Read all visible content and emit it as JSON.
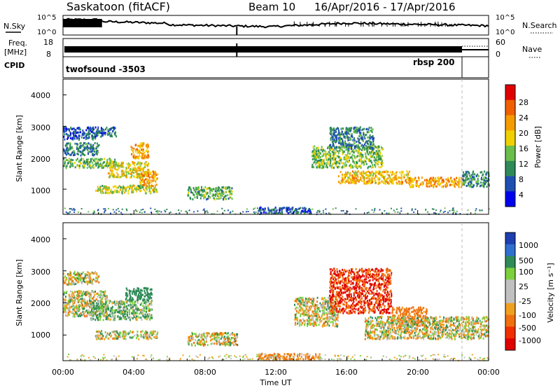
{
  "header": {
    "station": "Saskatoon (fitACF)",
    "beam": "Beam 10",
    "dates": "16/Apr/2016 - 17/Apr/2016"
  },
  "noise_panel": {
    "left_label": "N.Sky",
    "right_label": "N.Search",
    "left_ticks": [
      "10^5",
      "10^0"
    ],
    "right_ticks": [
      "10^5",
      "10^0"
    ]
  },
  "freq_panel": {
    "left_label_1": "Freq.",
    "left_label_2": "[MHz]",
    "right_label": "Nave",
    "left_ticks": [
      "18",
      "8"
    ],
    "right_ticks": [
      "60",
      "0"
    ]
  },
  "cpid_panel": {
    "label": "CPID",
    "program_1": "twofsound -3503",
    "program_2": "rbsp 200"
  },
  "power_panel": {
    "ylabel": "Slant Range [km]",
    "yticks": [
      "4000",
      "3000",
      "2000",
      "1000"
    ],
    "colorbar_label": "Power [dB]",
    "colorbar_ticks": [
      "28",
      "24",
      "20",
      "16",
      "12",
      "8",
      "4"
    ],
    "colors": [
      "#0000ee",
      "#1f4fb3",
      "#2e8b57",
      "#6abf4b",
      "#f0d000",
      "#f59b00",
      "#f06000",
      "#e00000"
    ]
  },
  "velocity_panel": {
    "ylabel": "Slant Range [km]",
    "yticks": [
      "4000",
      "3000",
      "2000",
      "1000"
    ],
    "colorbar_label": "Velocity [m s⁻¹]",
    "colorbar_ticks": [
      "1000",
      "500",
      "100",
      "25",
      "-25",
      "-100",
      "-500",
      "-1000"
    ],
    "colors": [
      "#1d3fb0",
      "#2f6fd0",
      "#2e8b57",
      "#7cd03c",
      "#c0c0c0",
      "#c0c0c0",
      "#f0a020",
      "#f07010",
      "#f03000",
      "#e00000"
    ]
  },
  "x_axis": {
    "ticks": [
      "00:00",
      "04:00",
      "08:00",
      "12:00",
      "16:00",
      "20:00",
      "00:00"
    ],
    "label": "Time UT"
  },
  "chart_data": {
    "type": "heatmap",
    "title": "Saskatoon (fitACF) Beam 10 16/Apr/2016 - 17/Apr/2016",
    "xlabel": "Time UT",
    "ylabel": "Slant Range [km]",
    "xlim": [
      0,
      24
    ],
    "ylim": [
      200,
      4500
    ],
    "power_scale_db": [
      0,
      32
    ],
    "velocity_scale_ms": [
      -1000,
      1000
    ],
    "cpid_change_hour": 22.5,
    "power_regions": [
      {
        "t0": 0.0,
        "t1": 1.8,
        "r0": 2600,
        "r1": 3000,
        "db": 6
      },
      {
        "t0": 1.8,
        "t1": 3.0,
        "r0": 2700,
        "r1": 3000,
        "db": 8
      },
      {
        "t0": 0.0,
        "t1": 2.0,
        "r0": 2100,
        "r1": 2500,
        "db": 9
      },
      {
        "t0": 0.0,
        "t1": 3.0,
        "r0": 1700,
        "r1": 2000,
        "db": 13
      },
      {
        "t0": 2.5,
        "t1": 4.8,
        "r0": 1400,
        "r1": 1900,
        "db": 18
      },
      {
        "t0": 3.8,
        "t1": 4.8,
        "r0": 2000,
        "r1": 2500,
        "db": 22
      },
      {
        "t0": 4.3,
        "t1": 5.3,
        "r0": 1100,
        "r1": 1600,
        "db": 22
      },
      {
        "t0": 1.8,
        "t1": 5.3,
        "r0": 900,
        "r1": 1150,
        "db": 16
      },
      {
        "t0": 7.0,
        "t1": 9.5,
        "r0": 700,
        "r1": 1100,
        "db": 12
      },
      {
        "t0": 11.0,
        "t1": 14.0,
        "r0": 250,
        "r1": 450,
        "db": 6
      },
      {
        "t0": 14.0,
        "t1": 18.0,
        "r0": 1700,
        "r1": 2400,
        "db": 14
      },
      {
        "t0": 15.0,
        "t1": 17.5,
        "r0": 2300,
        "r1": 3000,
        "db": 9
      },
      {
        "t0": 15.5,
        "t1": 19.5,
        "r0": 1200,
        "r1": 1600,
        "db": 20
      },
      {
        "t0": 19.5,
        "t1": 22.5,
        "r0": 1100,
        "r1": 1400,
        "db": 22
      },
      {
        "t0": 22.5,
        "t1": 24.0,
        "r0": 1100,
        "r1": 1600,
        "db": 10
      }
    ],
    "velocity_regions": [
      {
        "t0": 0.0,
        "t1": 2.0,
        "r0": 2600,
        "r1": 3000,
        "v": 0
      },
      {
        "t0": 0.0,
        "t1": 2.5,
        "r0": 1600,
        "r1": 2400,
        "v": 0
      },
      {
        "t0": 1.5,
        "t1": 5.0,
        "r0": 1500,
        "r1": 2100,
        "v": 100
      },
      {
        "t0": 3.5,
        "t1": 5.0,
        "r0": 2100,
        "r1": 2500,
        "v": 300
      },
      {
        "t0": 1.8,
        "t1": 5.3,
        "r0": 900,
        "r1": 1150,
        "v": 0
      },
      {
        "t0": 7.0,
        "t1": 9.8,
        "r0": 700,
        "r1": 1100,
        "v": 0
      },
      {
        "t0": 11.0,
        "t1": 14.5,
        "r0": 250,
        "r1": 450,
        "v": -150
      },
      {
        "t0": 13.0,
        "t1": 15.5,
        "r0": 1300,
        "r1": 2200,
        "v": 0
      },
      {
        "t0": 15.0,
        "t1": 18.5,
        "r0": 1700,
        "r1": 3100,
        "v": -500
      },
      {
        "t0": 18.5,
        "t1": 20.5,
        "r0": 1300,
        "r1": 1900,
        "v": -200
      },
      {
        "t0": 17.0,
        "t1": 24.0,
        "r0": 900,
        "r1": 1600,
        "v": 0
      }
    ]
  }
}
